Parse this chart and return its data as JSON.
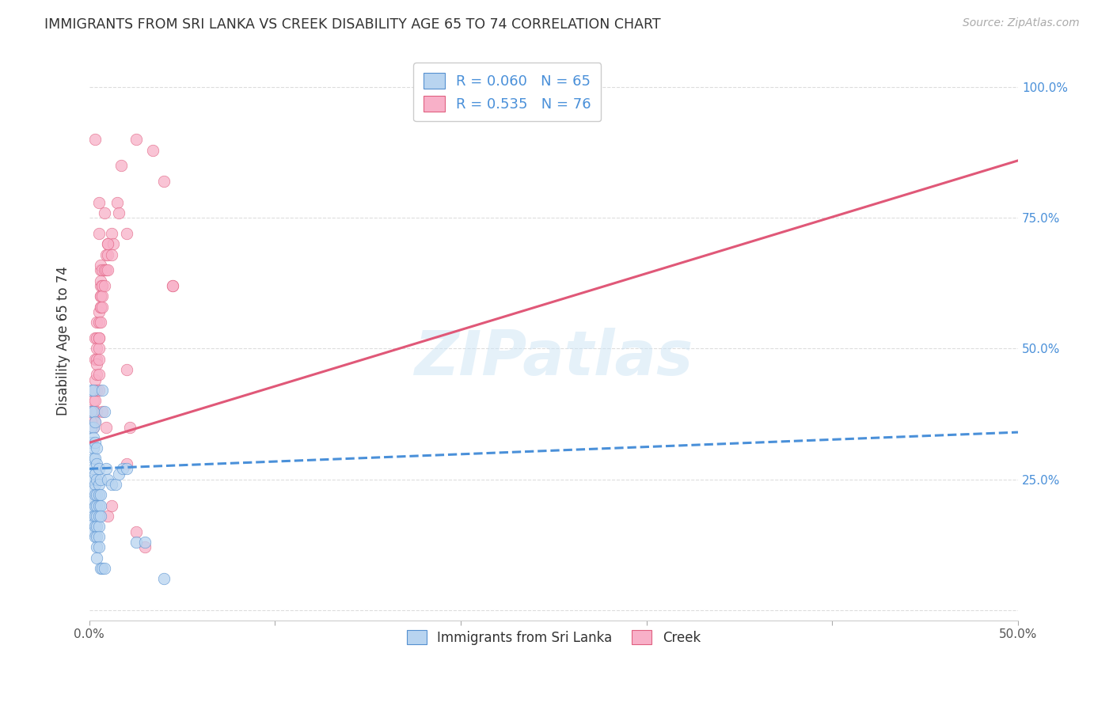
{
  "title": "IMMIGRANTS FROM SRI LANKA VS CREEK DISABILITY AGE 65 TO 74 CORRELATION CHART",
  "source": "Source: ZipAtlas.com",
  "ylabel": "Disability Age 65 to 74",
  "xlim": [
    0.0,
    0.5
  ],
  "ylim": [
    -0.02,
    1.05
  ],
  "xticks": [
    0.0,
    0.1,
    0.2,
    0.3,
    0.4,
    0.5
  ],
  "xticklabels": [
    "0.0%",
    "",
    "",
    "",
    "",
    "50.0%"
  ],
  "yticks": [
    0.0,
    0.25,
    0.5,
    0.75,
    1.0
  ],
  "yticklabels_right": [
    "",
    "25.0%",
    "50.0%",
    "75.0%",
    "100.0%"
  ],
  "legend_labels": [
    "Immigrants from Sri Lanka",
    "Creek"
  ],
  "legend_r_n": [
    {
      "R": "0.060",
      "N": "65"
    },
    {
      "R": "0.535",
      "N": "76"
    }
  ],
  "blue_color": "#b8d4f0",
  "pink_color": "#f8b0c8",
  "blue_edge_color": "#5590d0",
  "pink_edge_color": "#e06080",
  "blue_line_color": "#4a90d9",
  "pink_line_color": "#e05878",
  "watermark": "ZIPatlas",
  "blue_scatter": [
    [
      0.001,
      0.42
    ],
    [
      0.001,
      0.38
    ],
    [
      0.001,
      0.35
    ],
    [
      0.001,
      0.32
    ],
    [
      0.002,
      0.42
    ],
    [
      0.002,
      0.38
    ],
    [
      0.002,
      0.35
    ],
    [
      0.002,
      0.33
    ],
    [
      0.002,
      0.31
    ],
    [
      0.002,
      0.29
    ],
    [
      0.002,
      0.27
    ],
    [
      0.002,
      0.25
    ],
    [
      0.002,
      0.23
    ],
    [
      0.002,
      0.21
    ],
    [
      0.002,
      0.195
    ],
    [
      0.002,
      0.18
    ],
    [
      0.002,
      0.165
    ],
    [
      0.002,
      0.15
    ],
    [
      0.003,
      0.36
    ],
    [
      0.003,
      0.32
    ],
    [
      0.003,
      0.29
    ],
    [
      0.003,
      0.26
    ],
    [
      0.003,
      0.24
    ],
    [
      0.003,
      0.22
    ],
    [
      0.003,
      0.2
    ],
    [
      0.003,
      0.18
    ],
    [
      0.003,
      0.16
    ],
    [
      0.003,
      0.14
    ],
    [
      0.004,
      0.31
    ],
    [
      0.004,
      0.28
    ],
    [
      0.004,
      0.25
    ],
    [
      0.004,
      0.22
    ],
    [
      0.004,
      0.2
    ],
    [
      0.004,
      0.18
    ],
    [
      0.004,
      0.16
    ],
    [
      0.004,
      0.14
    ],
    [
      0.004,
      0.12
    ],
    [
      0.004,
      0.1
    ],
    [
      0.005,
      0.27
    ],
    [
      0.005,
      0.24
    ],
    [
      0.005,
      0.22
    ],
    [
      0.005,
      0.2
    ],
    [
      0.005,
      0.18
    ],
    [
      0.005,
      0.16
    ],
    [
      0.005,
      0.14
    ],
    [
      0.005,
      0.12
    ],
    [
      0.006,
      0.25
    ],
    [
      0.006,
      0.22
    ],
    [
      0.006,
      0.2
    ],
    [
      0.006,
      0.18
    ],
    [
      0.007,
      0.42
    ],
    [
      0.008,
      0.38
    ],
    [
      0.009,
      0.27
    ],
    [
      0.01,
      0.25
    ],
    [
      0.012,
      0.24
    ],
    [
      0.014,
      0.24
    ],
    [
      0.016,
      0.26
    ],
    [
      0.018,
      0.27
    ],
    [
      0.02,
      0.27
    ],
    [
      0.025,
      0.13
    ],
    [
      0.03,
      0.13
    ],
    [
      0.006,
      0.08
    ],
    [
      0.007,
      0.08
    ],
    [
      0.008,
      0.08
    ],
    [
      0.04,
      0.06
    ]
  ],
  "pink_scatter": [
    [
      0.001,
      0.38
    ],
    [
      0.002,
      0.35
    ],
    [
      0.002,
      0.4
    ],
    [
      0.002,
      0.36
    ],
    [
      0.003,
      0.38
    ],
    [
      0.003,
      0.42
    ],
    [
      0.003,
      0.52
    ],
    [
      0.003,
      0.48
    ],
    [
      0.003,
      0.44
    ],
    [
      0.003,
      0.4
    ],
    [
      0.004,
      0.55
    ],
    [
      0.004,
      0.52
    ],
    [
      0.004,
      0.48
    ],
    [
      0.004,
      0.45
    ],
    [
      0.004,
      0.5
    ],
    [
      0.004,
      0.47
    ],
    [
      0.005,
      0.52
    ],
    [
      0.005,
      0.48
    ],
    [
      0.005,
      0.55
    ],
    [
      0.005,
      0.5
    ],
    [
      0.005,
      0.57
    ],
    [
      0.005,
      0.52
    ],
    [
      0.005,
      0.78
    ],
    [
      0.006,
      0.6
    ],
    [
      0.006,
      0.55
    ],
    [
      0.006,
      0.62
    ],
    [
      0.006,
      0.58
    ],
    [
      0.006,
      0.65
    ],
    [
      0.006,
      0.6
    ],
    [
      0.006,
      0.63
    ],
    [
      0.006,
      0.58
    ],
    [
      0.006,
      0.66
    ],
    [
      0.007,
      0.62
    ],
    [
      0.007,
      0.58
    ],
    [
      0.007,
      0.65
    ],
    [
      0.007,
      0.62
    ],
    [
      0.007,
      0.6
    ],
    [
      0.008,
      0.65
    ],
    [
      0.008,
      0.62
    ],
    [
      0.009,
      0.68
    ],
    [
      0.009,
      0.65
    ],
    [
      0.01,
      0.7
    ],
    [
      0.01,
      0.68
    ],
    [
      0.01,
      0.65
    ],
    [
      0.012,
      0.72
    ],
    [
      0.013,
      0.7
    ],
    [
      0.015,
      0.78
    ],
    [
      0.016,
      0.76
    ],
    [
      0.02,
      0.72
    ],
    [
      0.001,
      0.38
    ],
    [
      0.003,
      0.36
    ],
    [
      0.004,
      0.42
    ],
    [
      0.004,
      0.38
    ],
    [
      0.005,
      0.45
    ],
    [
      0.005,
      0.42
    ],
    [
      0.007,
      0.38
    ],
    [
      0.009,
      0.35
    ],
    [
      0.001,
      0.36
    ],
    [
      0.01,
      0.18
    ],
    [
      0.012,
      0.2
    ],
    [
      0.02,
      0.46
    ],
    [
      0.022,
      0.35
    ],
    [
      0.02,
      0.28
    ],
    [
      0.025,
      0.15
    ],
    [
      0.03,
      0.12
    ],
    [
      0.003,
      0.9
    ],
    [
      0.005,
      0.72
    ],
    [
      0.008,
      0.76
    ],
    [
      0.01,
      0.7
    ],
    [
      0.012,
      0.68
    ],
    [
      0.017,
      0.85
    ],
    [
      0.025,
      0.9
    ],
    [
      0.034,
      0.88
    ],
    [
      0.04,
      0.82
    ],
    [
      0.045,
      0.62
    ],
    [
      0.045,
      0.62
    ]
  ],
  "blue_line": {
    "x": [
      0.0,
      0.5
    ],
    "y": [
      0.27,
      0.34
    ]
  },
  "pink_line": {
    "x": [
      0.0,
      0.5
    ],
    "y": [
      0.32,
      0.86
    ]
  }
}
